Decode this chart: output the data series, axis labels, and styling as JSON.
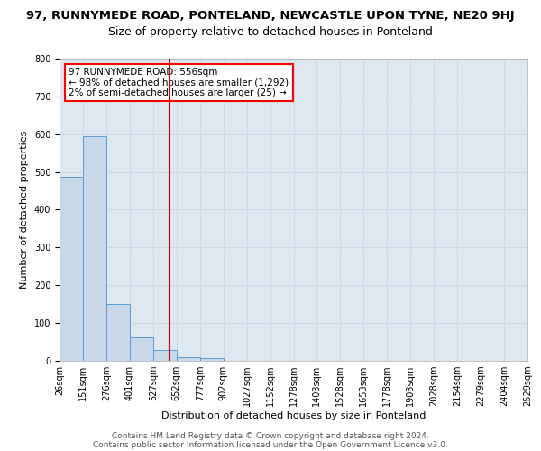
{
  "title": "97, RUNNYMEDE ROAD, PONTELAND, NEWCASTLE UPON TYNE, NE20 9HJ",
  "subtitle": "Size of property relative to detached houses in Ponteland",
  "xlabel": "Distribution of detached houses by size in Ponteland",
  "ylabel": "Number of detached properties",
  "bar_values": [
    487,
    594,
    150,
    63,
    28,
    10,
    6,
    0,
    0,
    0,
    0,
    0,
    0,
    0,
    0,
    0,
    0,
    0,
    0,
    0
  ],
  "bar_labels": [
    "26sqm",
    "151sqm",
    "276sqm",
    "401sqm",
    "527sqm",
    "652sqm",
    "777sqm",
    "902sqm",
    "1027sqm",
    "1152sqm",
    "1278sqm",
    "1403sqm",
    "1528sqm",
    "1653sqm",
    "1778sqm",
    "1903sqm",
    "2028sqm",
    "2154sqm",
    "2279sqm",
    "2404sqm",
    "2529sqm"
  ],
  "ylim": [
    0,
    800
  ],
  "yticks": [
    0,
    100,
    200,
    300,
    400,
    500,
    600,
    700,
    800
  ],
  "bar_color": "#c8d8e8",
  "bar_edgecolor": "#5b9bd5",
  "grid_color": "#d0d8e8",
  "background_color": "#dde8f0",
  "red_line_x": 4.21,
  "annotation_text": "97 RUNNYMEDE ROAD: 556sqm\n← 98% of detached houses are smaller (1,292)\n2% of semi-detached houses are larger (25) →",
  "vline_color": "#cc0000",
  "footer_line1": "Contains HM Land Registry data © Crown copyright and database right 2024.",
  "footer_line2": "Contains public sector information licensed under the Open Government Licence v3.0.",
  "title_fontsize": 9.5,
  "subtitle_fontsize": 9,
  "label_fontsize": 8,
  "tick_fontsize": 7,
  "annotation_fontsize": 7.5,
  "footer_fontsize": 6.5
}
